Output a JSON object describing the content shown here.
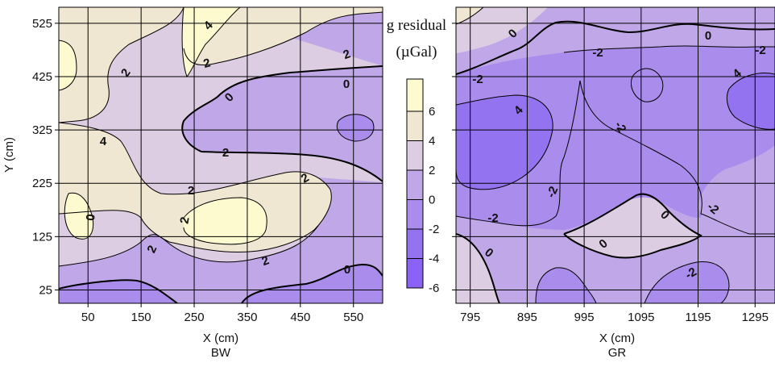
{
  "chart_data": [
    {
      "type": "contour",
      "panel": "BW",
      "xlabel": "X (cm)",
      "sublabel": "BW",
      "ylabel": "Y (cm)",
      "xticks": [
        "50",
        "150",
        "250",
        "350",
        "450",
        "550"
      ],
      "yticks": [
        "25",
        "125",
        "225",
        "325",
        "425",
        "525"
      ],
      "xlim": [
        -5,
        605
      ],
      "ylim": [
        0,
        555
      ],
      "contour_labels": [
        "4",
        "2",
        "2",
        "0",
        "2",
        "0",
        "4",
        "2",
        "2",
        "2",
        "0",
        "2"
      ]
    },
    {
      "type": "contour",
      "panel": "GR",
      "xlabel": "X (cm)",
      "sublabel": "GR",
      "xticks": [
        "795",
        "895",
        "995",
        "1095",
        "1195",
        "1295"
      ],
      "xlim": [
        770,
        1330
      ],
      "ylim": [
        0,
        555
      ],
      "contour_labels": [
        "0",
        "0",
        "-2",
        "-2",
        "-2",
        "4",
        "4",
        "-2",
        "-2",
        "-2",
        "0",
        "-2",
        "0",
        "0",
        "-2"
      ]
    }
  ],
  "legend": {
    "title_line1": "g residual",
    "title_line2": "(µGal)",
    "levels": [
      "6",
      "4",
      "2",
      "0",
      "-2",
      "-4",
      "-6"
    ],
    "colors": [
      "#fdfad0",
      "#efe7d2",
      "#dccde2",
      "#c0a8e8",
      "#a98cec",
      "#9373f0",
      "#8b63f4"
    ]
  },
  "colors": {
    "band_0_2": "#dccde2",
    "band_2_4": "#efe7d2",
    "band_4_6": "#fdfad0",
    "band_m2_0": "#c0a8e8",
    "band_m4_m2": "#a98cec",
    "band_m6_m4": "#9373f0",
    "band_m8_m6": "#8b63f4"
  }
}
